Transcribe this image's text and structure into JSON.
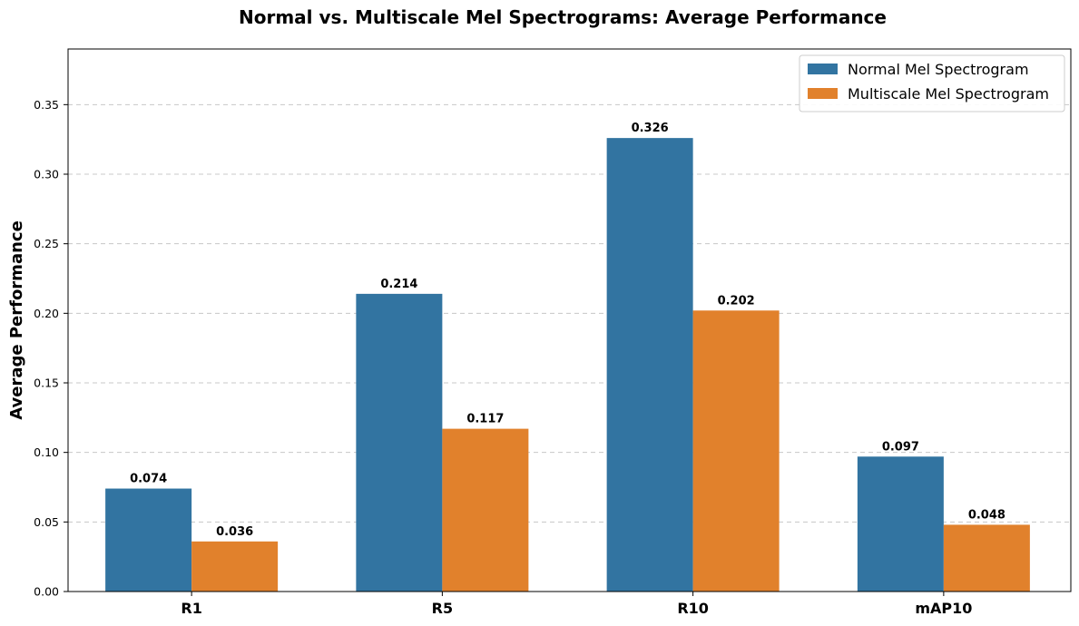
{
  "chart_data": {
    "type": "bar",
    "title": "Normal vs. Multiscale Mel Spectrograms: Average Performance",
    "xlabel": "",
    "ylabel": "Average Performance",
    "categories": [
      "R1",
      "R5",
      "R10",
      "mAP10"
    ],
    "series": [
      {
        "name": "Normal Mel Spectrogram",
        "color": "#3274a1",
        "values": [
          0.074,
          0.214,
          0.326,
          0.097
        ],
        "labels": [
          "0.074",
          "0.214",
          "0.326",
          "0.097"
        ]
      },
      {
        "name": "Multiscale Mel Spectrogram",
        "color": "#e1812c",
        "values": [
          0.036,
          0.117,
          0.202,
          0.048
        ],
        "labels": [
          "0.036",
          "0.117",
          "0.202",
          "0.048"
        ]
      }
    ],
    "ylim": [
      0,
      0.39
    ],
    "yticks": [
      0.0,
      0.05,
      0.1,
      0.15,
      0.2,
      0.25,
      0.3,
      0.35
    ],
    "ytick_labels": [
      "0.00",
      "0.05",
      "0.10",
      "0.15",
      "0.20",
      "0.25",
      "0.30",
      "0.35"
    ],
    "grid": "horizontal dashed",
    "legend_position": "top-right"
  }
}
